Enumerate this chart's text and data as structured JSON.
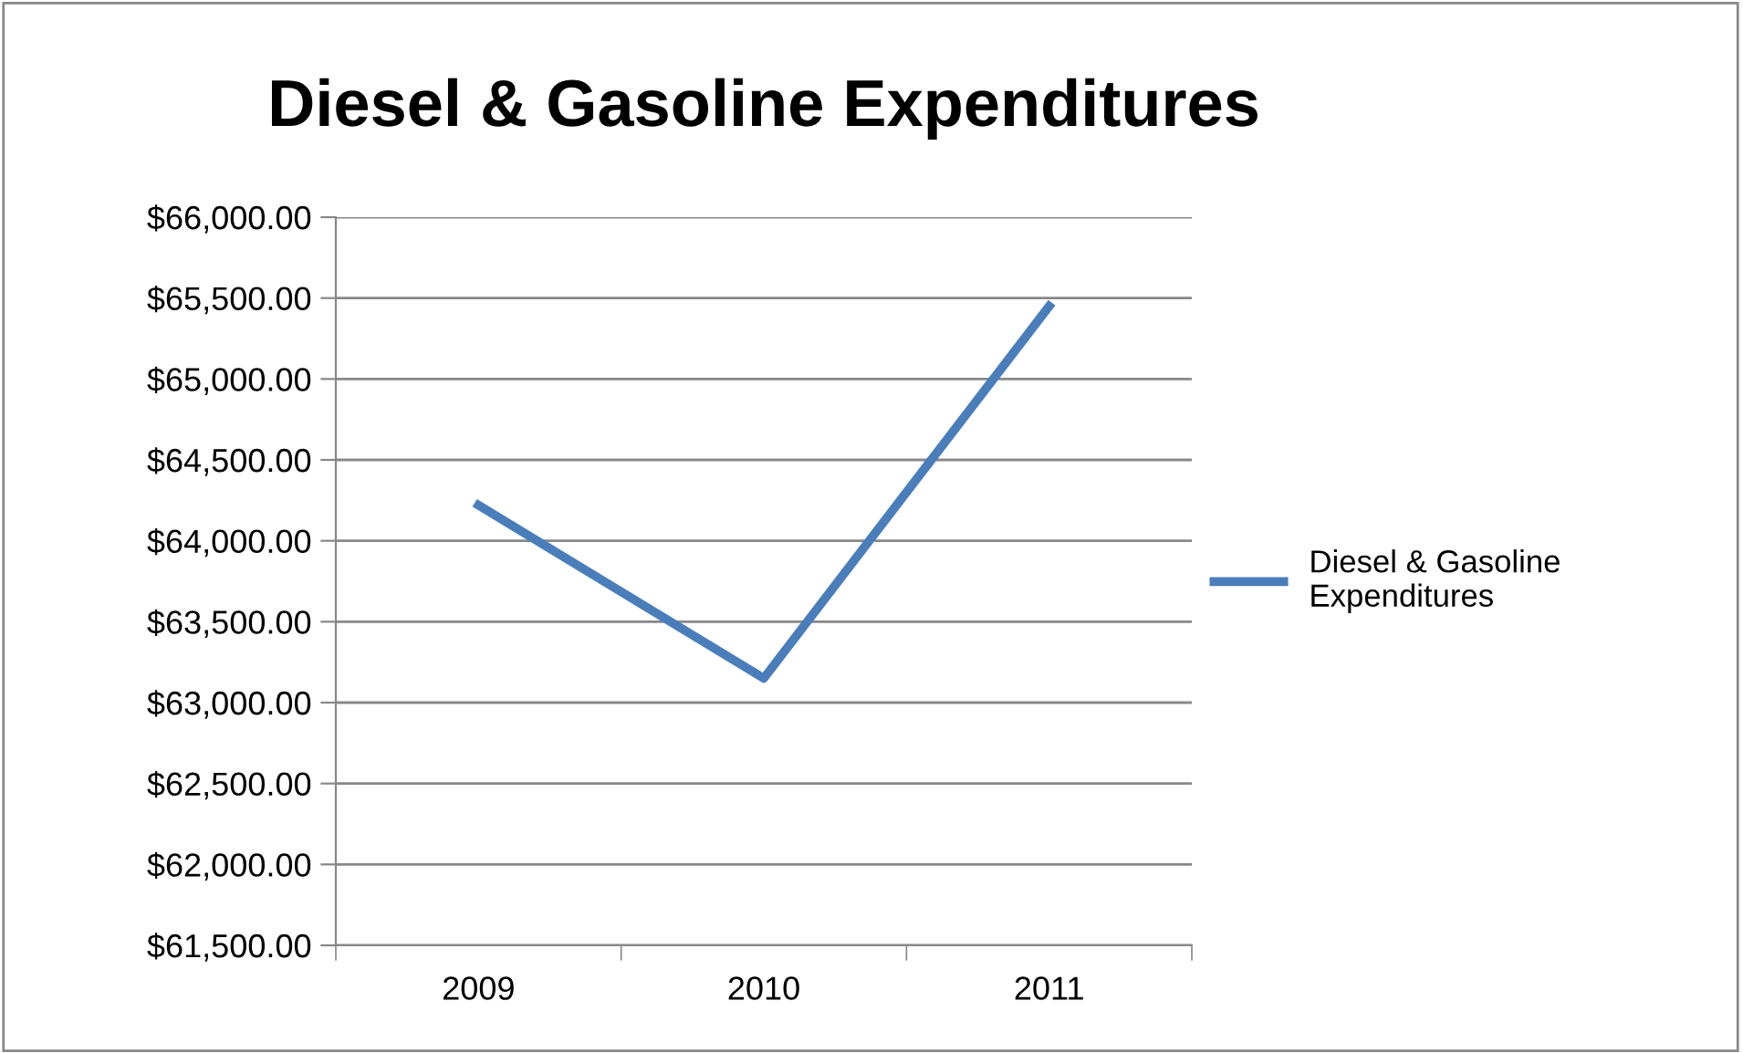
{
  "chart_data": {
    "type": "line",
    "title": "Diesel & Gasoline Expenditures",
    "categories": [
      "2009",
      "2010",
      "2011"
    ],
    "series": [
      {
        "name": "Diesel & Gasoline Expenditures",
        "color": "#4a7ebb",
        "values": [
          64220,
          63150,
          65450
        ]
      }
    ],
    "ylim": [
      61500,
      66000
    ],
    "yticks": [
      {
        "value": 61500,
        "label": "$61,500.00"
      },
      {
        "value": 62000,
        "label": "$62,000.00"
      },
      {
        "value": 62500,
        "label": "$62,500.00"
      },
      {
        "value": 63000,
        "label": "$63,000.00"
      },
      {
        "value": 63500,
        "label": "$63,500.00"
      },
      {
        "value": 64000,
        "label": "$64,000.00"
      },
      {
        "value": 64500,
        "label": "$64,500.00"
      },
      {
        "value": 65000,
        "label": "$65,000.00"
      },
      {
        "value": 65500,
        "label": "$65,500.00"
      },
      {
        "value": 66000,
        "label": "$66,000.00"
      }
    ],
    "grid": "y",
    "legend": "right",
    "marker": "none",
    "line_style": "solid"
  }
}
